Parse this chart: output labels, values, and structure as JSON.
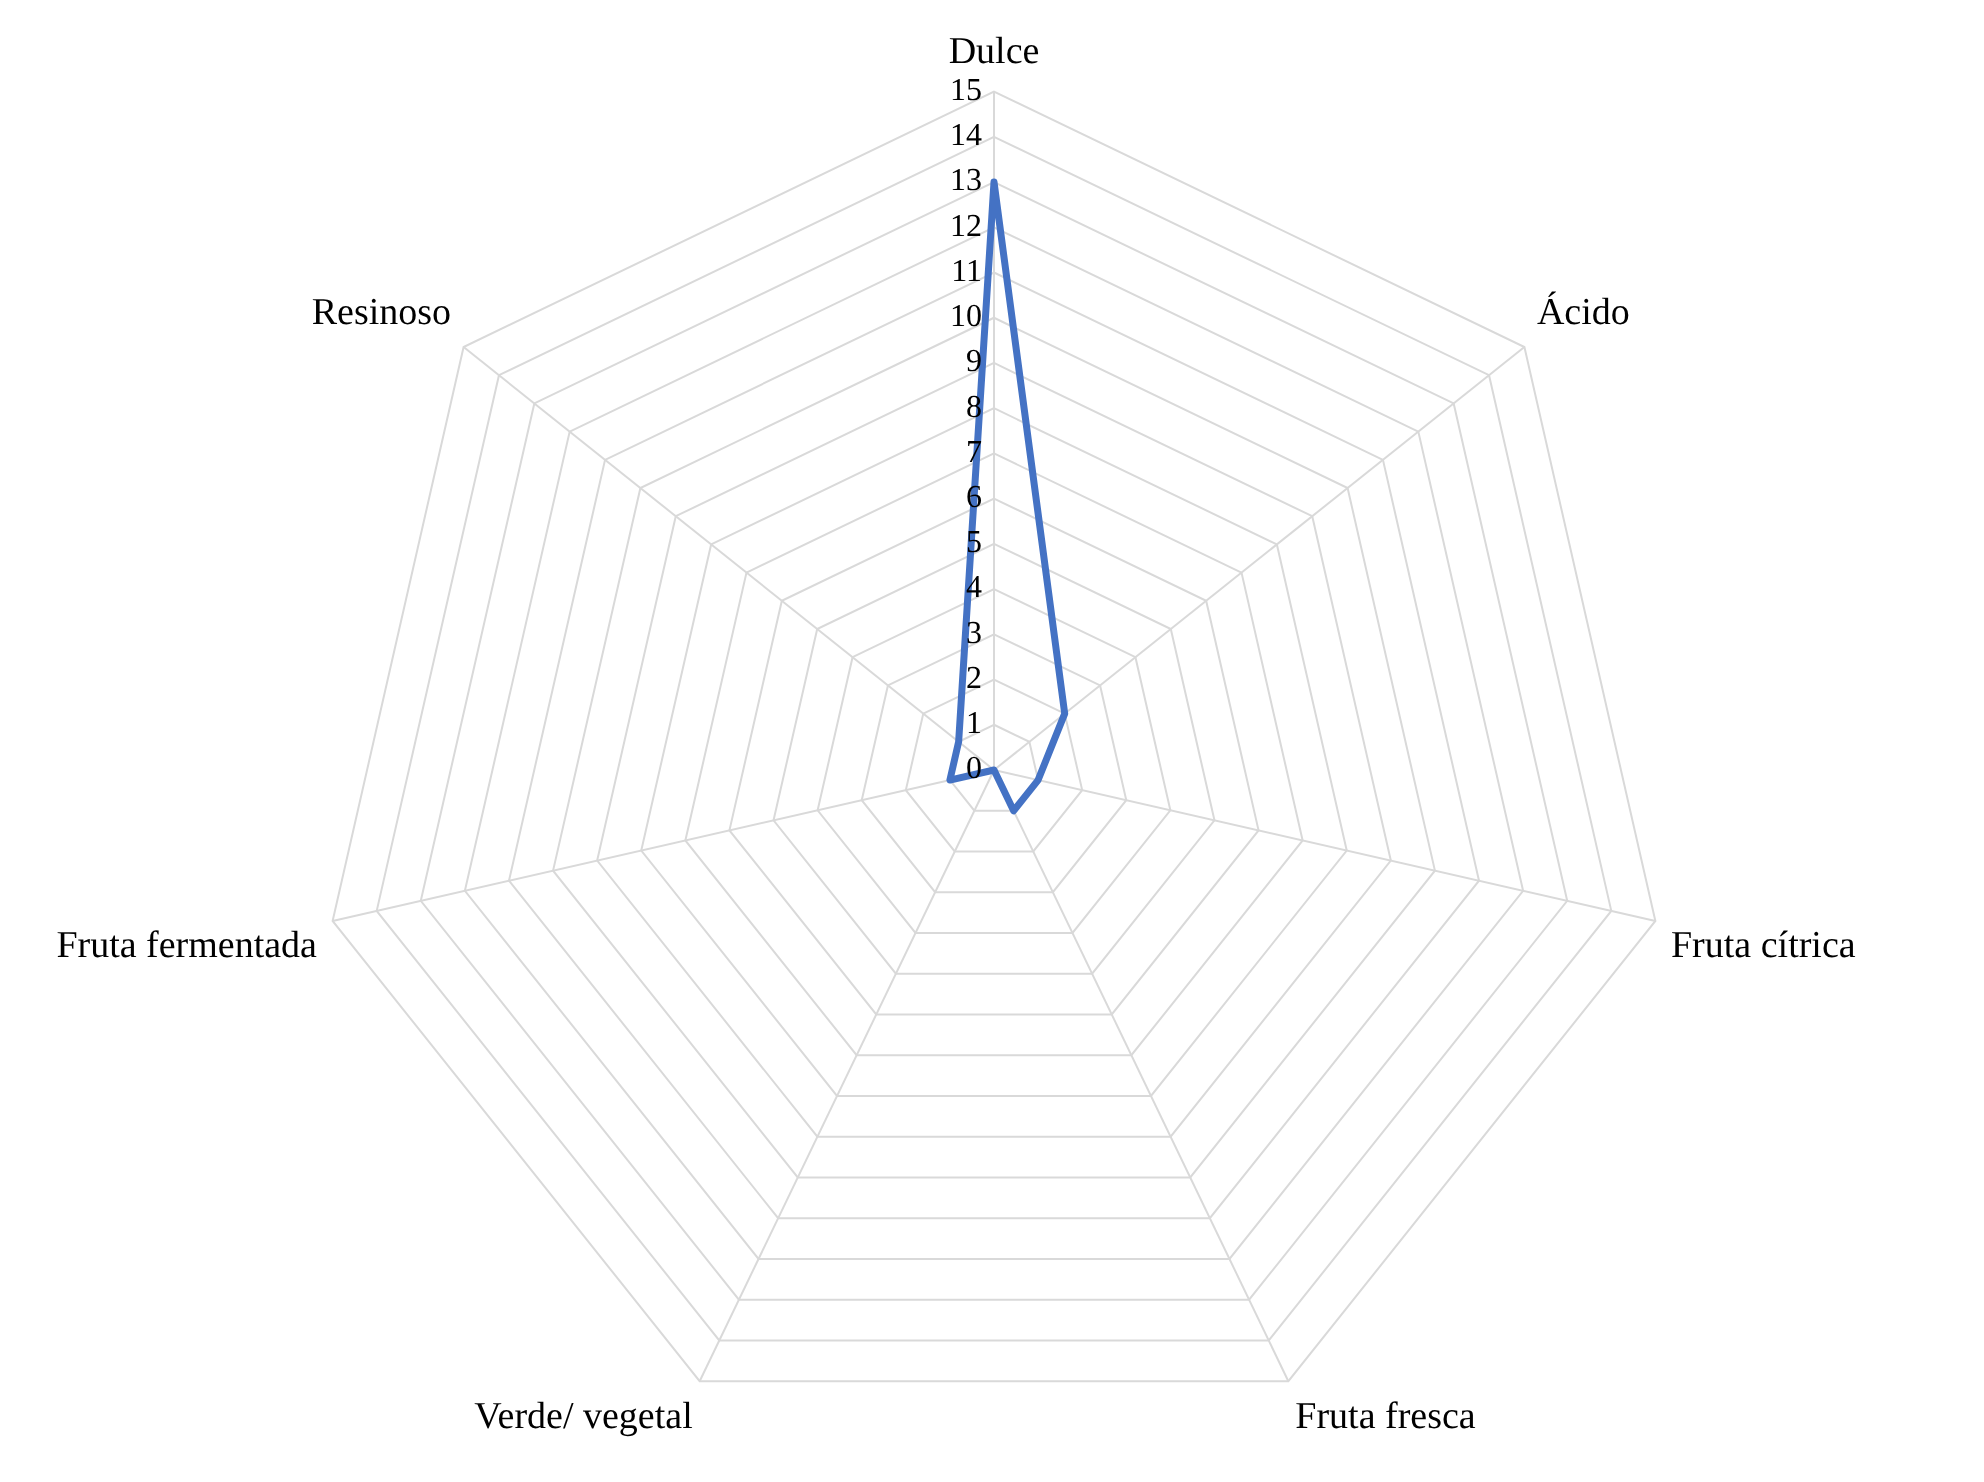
{
  "chart_data": {
    "type": "radar",
    "categories": [
      "Dulce",
      "Ácido",
      "Fruta cítrica",
      "Fruta fresca",
      "Verde/ vegetal",
      "Fruta fermentada",
      "Resinoso"
    ],
    "series": [
      {
        "color": "#4472c4",
        "values": [
          13,
          2,
          1,
          1,
          0,
          1,
          1
        ]
      }
    ],
    "ylim": [
      0,
      15
    ],
    "yticks": [
      0,
      1,
      2,
      3,
      4,
      5,
      6,
      7,
      8,
      9,
      10,
      11,
      12,
      13,
      14,
      15
    ],
    "grid": true,
    "legend": false,
    "marker": "none",
    "line_style": "solid"
  }
}
